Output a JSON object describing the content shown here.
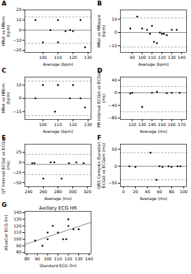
{
  "chart_data": [
    {
      "type": "scatter",
      "annotations": [
        "A"
      ],
      "x": [
        95,
        100,
        105,
        110,
        110,
        115,
        118,
        120,
        125,
        128
      ],
      "values": [
        10,
        -12,
        0,
        10,
        -12,
        -1,
        0,
        -1,
        10,
        -17
      ],
      "color": "#000000",
      "reference_lines": [
        {
          "value": 0,
          "color": "#808080",
          "line_style": "solid"
        },
        {
          "value": 13,
          "color": "#808080",
          "line_style": "dashed"
        },
        {
          "value": -13,
          "color": "#808080",
          "line_style": "dashed"
        }
      ],
      "xlabel": "Average (bpm)",
      "ylabel": "HRst vs HRbm\n(bpm)",
      "xlim": [
        88,
        132
      ],
      "ylim": [
        -22,
        20
      ],
      "xticks": [
        100,
        110,
        120,
        130
      ],
      "yticks": [
        -20,
        -10,
        0,
        10,
        20
      ]
    },
    {
      "type": "scatter",
      "annotations": [
        "B"
      ],
      "x": [
        88,
        95,
        100,
        105,
        108,
        110,
        112,
        115,
        118,
        120,
        122,
        125,
        130,
        135
      ],
      "values": [
        3,
        12,
        3,
        2,
        -1,
        5,
        -7,
        -8,
        0,
        -1,
        -1,
        -2,
        2,
        2
      ],
      "color": "#000000",
      "reference_lines": [
        {
          "value": 0,
          "color": "#808080",
          "line_style": "solid"
        },
        {
          "value": 11,
          "color": "#808080",
          "line_style": "dashed"
        },
        {
          "value": -11,
          "color": "#808080",
          "line_style": "dashed"
        }
      ],
      "xlabel": "Average (bpm)",
      "ylabel": "HRst vs HRappe\n(bpm)",
      "xlim": [
        78,
        145
      ],
      "ylim": [
        -15,
        17
      ],
      "xticks": [
        90,
        100,
        110,
        120,
        130,
        140
      ],
      "yticks": [
        -10,
        0,
        10
      ]
    },
    {
      "type": "scatter",
      "annotations": [
        "C"
      ],
      "x": [
        95,
        100,
        108,
        110,
        118,
        120,
        125,
        128
      ],
      "values": [
        0,
        10,
        -10,
        10,
        0,
        10,
        0,
        -7
      ],
      "color": "#000000",
      "reference_lines": [
        {
          "value": 0,
          "color": "#808080",
          "line_style": "solid"
        },
        {
          "value": 13,
          "color": "#808080",
          "line_style": "dashed"
        },
        {
          "value": -13,
          "color": "#808080",
          "line_style": "dashed"
        }
      ],
      "xlabel": "Average (bpm)",
      "ylabel": "HRst vs HRbm\n(bpm)",
      "xlim": [
        88,
        132
      ],
      "ylim": [
        -16,
        16
      ],
      "xticks": [
        100,
        110,
        120,
        130
      ],
      "yticks": [
        -10,
        0,
        10
      ]
    },
    {
      "type": "scatter",
      "annotations": [
        "D"
      ],
      "x": [
        118,
        120,
        130,
        140,
        145,
        155,
        160,
        168
      ],
      "values": [
        -2,
        0,
        -45,
        0,
        3,
        -1,
        0,
        0
      ],
      "color": "#000000",
      "reference_lines": [
        {
          "value": 0,
          "color": "#808080",
          "line_style": "solid"
        },
        {
          "value": 20,
          "color": "#808080",
          "line_style": "dashed"
        },
        {
          "value": -60,
          "color": "#808080",
          "line_style": "dashed"
        }
      ],
      "xlabel": "Average (ms)",
      "ylabel": "PR Interval ECGst vs ECGsm\n(ms)",
      "xlim": [
        108,
        175
      ],
      "ylim": [
        -85,
        50
      ],
      "xticks": [
        120,
        130,
        140,
        150,
        160,
        170
      ],
      "yticks": [
        -80,
        -40,
        0,
        40
      ]
    },
    {
      "type": "scatter",
      "annotations": [
        "E"
      ],
      "x": [
        245,
        248,
        260,
        270,
        275,
        285,
        295,
        305,
        315
      ],
      "values": [
        -2,
        -2,
        -40,
        0,
        0,
        -40,
        -2,
        0,
        -2
      ],
      "color": "#000000",
      "reference_lines": [
        {
          "value": -5,
          "color": "#808080",
          "line_style": "solid"
        },
        {
          "value": 20,
          "color": "#808080",
          "line_style": "dashed"
        },
        {
          "value": -30,
          "color": "#808080",
          "line_style": "dashed"
        }
      ],
      "xlabel": "Average (ms)",
      "ylabel": "QT Interval ECGst vs ECGsc\n(ms)",
      "xlim": [
        235,
        325
      ],
      "ylim": [
        -60,
        45
      ],
      "xticks": [
        240,
        260,
        280,
        300,
        320
      ],
      "yticks": [
        -50,
        -25,
        0,
        25
      ]
    },
    {
      "type": "scatter",
      "annotations": [
        "F"
      ],
      "x": [
        10,
        20,
        45,
        55,
        60,
        65,
        75,
        80,
        90,
        95
      ],
      "values": [
        0,
        -2,
        40,
        -40,
        0,
        -2,
        0,
        -2,
        0,
        0
      ],
      "color": "#000000",
      "reference_lines": [
        {
          "value": 0,
          "color": "#808080",
          "line_style": "solid"
        },
        {
          "value": 40,
          "color": "#808080",
          "line_style": "dashed"
        },
        {
          "value": -40,
          "color": "#808080",
          "line_style": "dashed"
        }
      ],
      "xlabel": "Average (ms)",
      "ylabel": "QRS Complex Duration\nECGst vs ECGsm (ms)",
      "xlim": [
        -5,
        105
      ],
      "ylim": [
        -60,
        65
      ],
      "xticks": [
        0,
        20,
        40,
        60,
        80,
        100
      ],
      "yticks": [
        -50,
        0,
        50
      ]
    },
    {
      "type": "scatter",
      "title": "Axillary ECG HR",
      "annotations": [
        "G"
      ],
      "x": [
        88,
        95,
        100,
        100,
        105,
        110,
        115,
        118,
        120,
        120,
        125,
        130
      ],
      "values": [
        98,
        90,
        100,
        110,
        120,
        110,
        100,
        100,
        120,
        130,
        115,
        115
      ],
      "color": "#000000",
      "fit_line": {
        "x": [
          78,
          142
        ],
        "values": [
          92.0014,
          125.4756
        ],
        "color": "#808080"
      },
      "xlabel": "Standard ECG (hr)",
      "ylabel": "AlivaCor ECG (hr)",
      "xlim": [
        78,
        142
      ],
      "ylim": [
        78,
        142
      ],
      "xticks": [
        80,
        90,
        100,
        110,
        120,
        130,
        140
      ],
      "yticks": [
        80,
        90,
        100,
        110,
        120,
        130,
        140
      ]
    }
  ]
}
